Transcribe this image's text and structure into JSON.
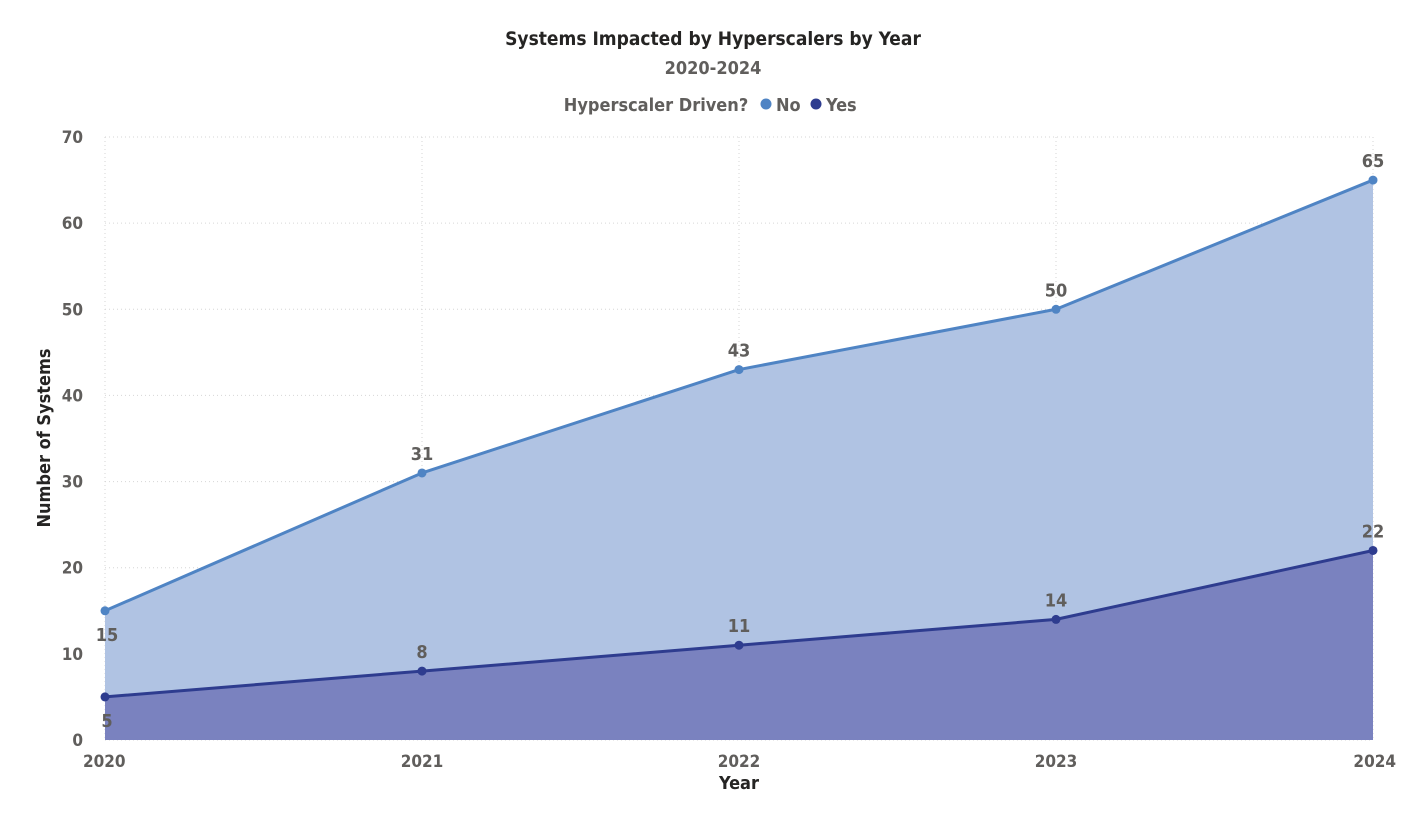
{
  "chart_data": {
    "type": "area",
    "title": "Systems Impacted by Hyperscalers by Year",
    "subtitle": "2020-2024",
    "legend_title": "Hyperscaler Driven?",
    "legend_position": "top-center",
    "x": [
      "2020",
      "2021",
      "2022",
      "2023",
      "2024"
    ],
    "xlabel": "Year",
    "ylabel": "Number of Systems",
    "ylim": [
      0,
      70
    ],
    "yticks": [
      0,
      10,
      20,
      30,
      40,
      50,
      60,
      70
    ],
    "grid": true,
    "series": [
      {
        "name": "No",
        "values": [
          15,
          31,
          43,
          50,
          65
        ],
        "line_color": "#4f84c4",
        "fill_color": "#b0c3e3"
      },
      {
        "name": "Yes",
        "values": [
          5,
          8,
          11,
          14,
          22
        ],
        "line_color": "#2e3c8f",
        "fill_color": "#7a82bf"
      }
    ]
  }
}
